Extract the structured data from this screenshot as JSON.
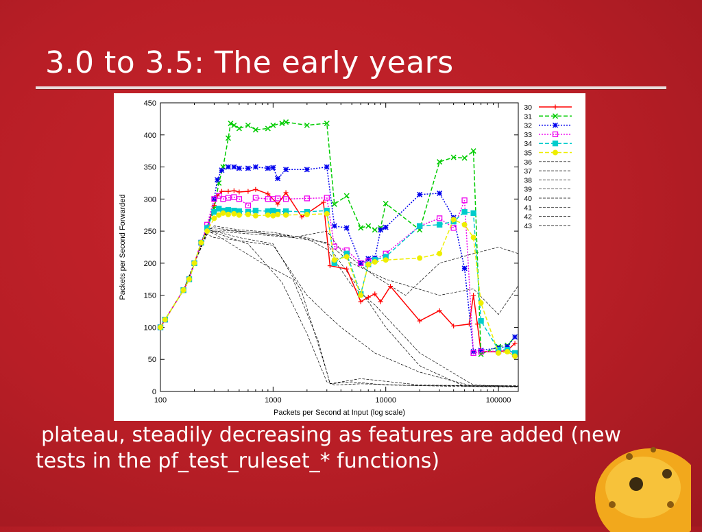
{
  "slide": {
    "title": "3.0 to 3.5: The early years",
    "caption_line1": "plateau, steadily decreasing as features are added (new",
    "caption_line2": "tests in the pf_test_ruleset_* functions)"
  },
  "chart_data": {
    "type": "line",
    "title": "",
    "xlabel": "Packets per Second at Input (log scale)",
    "ylabel": "Packets per Second Forwarded",
    "xscale": "log",
    "xlim": [
      100,
      150000
    ],
    "ylim": [
      0,
      450
    ],
    "x_ticks": [
      100,
      1000,
      10000,
      100000
    ],
    "x_tick_labels": [
      "100",
      "1000",
      "10000",
      "100000"
    ],
    "y_ticks": [
      0,
      50,
      100,
      150,
      200,
      250,
      300,
      350,
      400,
      450
    ],
    "grid": true,
    "legend_position": "right",
    "series": [
      {
        "name": "30",
        "color": "#ff0000",
        "style": "solid",
        "marker": "plus",
        "x": [
          100,
          110,
          160,
          180,
          200,
          230,
          260,
          300,
          320,
          350,
          400,
          450,
          500,
          600,
          700,
          900,
          1100,
          1300,
          1800,
          2800,
          3200,
          4500,
          6000,
          7000,
          8000,
          9000,
          11000,
          20000,
          30000,
          40000,
          55000,
          60000,
          65000,
          70000,
          100000,
          120000,
          140000
        ],
        "y": [
          100,
          112,
          158,
          175,
          200,
          232,
          255,
          290,
          305,
          312,
          312,
          313,
          311,
          312,
          315,
          308,
          292,
          310,
          272,
          295,
          196,
          191,
          140,
          147,
          152,
          140,
          164,
          110,
          126,
          102,
          105,
          150,
          105,
          62,
          62,
          64,
          75
        ]
      },
      {
        "name": "31",
        "color": "#00cc00",
        "style": "dashed",
        "marker": "x",
        "x": [
          100,
          110,
          160,
          180,
          200,
          230,
          260,
          300,
          330,
          360,
          400,
          420,
          450,
          500,
          600,
          700,
          900,
          1000,
          1200,
          1300,
          2000,
          3000,
          3500,
          4500,
          6000,
          7000,
          8000,
          9000,
          10000,
          20000,
          30000,
          40000,
          50000,
          60000,
          70000,
          100000,
          120000,
          140000
        ],
        "y": [
          100,
          112,
          158,
          175,
          200,
          232,
          255,
          285,
          325,
          350,
          395,
          418,
          415,
          410,
          415,
          408,
          410,
          415,
          418,
          420,
          415,
          418,
          292,
          305,
          255,
          258,
          252,
          255,
          293,
          252,
          358,
          365,
          364,
          375,
          58,
          70,
          72,
          85
        ]
      },
      {
        "name": "32",
        "color": "#0000ee",
        "style": "dotted",
        "marker": "star",
        "x": [
          100,
          110,
          160,
          180,
          200,
          230,
          260,
          300,
          320,
          350,
          400,
          450,
          500,
          600,
          700,
          900,
          1000,
          1100,
          1300,
          2000,
          3000,
          3500,
          4500,
          6000,
          7000,
          8000,
          9000,
          10000,
          20000,
          30000,
          40000,
          50000,
          60000,
          70000,
          100000,
          120000,
          140000
        ],
        "y": [
          100,
          112,
          158,
          175,
          200,
          232,
          255,
          300,
          330,
          345,
          350,
          350,
          348,
          348,
          350,
          348,
          349,
          332,
          346,
          346,
          350,
          258,
          255,
          200,
          207,
          208,
          252,
          256,
          307,
          309,
          271,
          192,
          62,
          64,
          68,
          70,
          85
        ]
      },
      {
        "name": "33",
        "color": "#ee00ee",
        "style": "dotted",
        "marker": "square",
        "x": [
          100,
          110,
          160,
          180,
          200,
          230,
          260,
          300,
          330,
          360,
          400,
          450,
          500,
          600,
          700,
          900,
          1000,
          1100,
          1300,
          2000,
          3000,
          3500,
          4500,
          6000,
          7000,
          8000,
          10000,
          20000,
          30000,
          40000,
          50000,
          60000,
          70000,
          100000,
          120000,
          140000
        ],
        "y": [
          100,
          112,
          158,
          175,
          200,
          232,
          260,
          300,
          305,
          300,
          302,
          303,
          300,
          290,
          302,
          300,
          300,
          301,
          300,
          301,
          302,
          226,
          220,
          200,
          203,
          205,
          215,
          258,
          270,
          255,
          298,
          60,
          62,
          63,
          65,
          58
        ]
      },
      {
        "name": "34",
        "color": "#00cccc",
        "style": "dashed",
        "marker": "square",
        "x": [
          100,
          110,
          160,
          180,
          200,
          230,
          260,
          300,
          330,
          360,
          400,
          450,
          500,
          600,
          700,
          900,
          1000,
          1100,
          1300,
          2000,
          3000,
          3500,
          4500,
          6000,
          7000,
          8000,
          10000,
          20000,
          30000,
          40000,
          50000,
          60000,
          70000,
          100000,
          120000,
          140000
        ],
        "y": [
          100,
          112,
          158,
          175,
          200,
          232,
          255,
          280,
          285,
          282,
          283,
          282,
          281,
          280,
          282,
          281,
          282,
          280,
          281,
          280,
          282,
          200,
          215,
          152,
          198,
          205,
          210,
          258,
          260,
          265,
          280,
          278,
          110,
          65,
          65,
          60
        ]
      },
      {
        "name": "35",
        "color": "#eeee00",
        "style": "dashed",
        "marker": "circle",
        "x": [
          100,
          110,
          160,
          180,
          200,
          230,
          260,
          300,
          330,
          360,
          400,
          450,
          500,
          600,
          700,
          900,
          1000,
          1100,
          1300,
          2000,
          3000,
          3500,
          4500,
          6000,
          7000,
          8000,
          10000,
          20000,
          30000,
          40000,
          50000,
          60000,
          70000,
          100000,
          120000,
          140000
        ],
        "y": [
          100,
          112,
          158,
          175,
          200,
          232,
          250,
          270,
          275,
          278,
          276,
          277,
          275,
          276,
          274,
          275,
          274,
          276,
          275,
          276,
          277,
          205,
          210,
          150,
          198,
          202,
          205,
          208,
          215,
          268,
          260,
          240,
          138,
          60,
          62,
          55
        ]
      },
      {
        "name": "36",
        "color": "#000000",
        "style": "thin",
        "marker": "none",
        "x": [
          100,
          160,
          200,
          260,
          300,
          500,
          1000,
          2000,
          3000,
          5000,
          8000,
          20000,
          60000,
          150000
        ],
        "y": [
          100,
          158,
          200,
          250,
          258,
          252,
          248,
          238,
          222,
          165,
          135,
          60,
          10,
          8
        ]
      },
      {
        "name": "37",
        "color": "#000000",
        "style": "thin",
        "marker": "none",
        "x": [
          100,
          160,
          200,
          260,
          300,
          500,
          1000,
          1800,
          3000,
          3200,
          5000,
          10000,
          40000,
          150000
        ],
        "y": [
          100,
          158,
          200,
          248,
          250,
          240,
          230,
          155,
          30,
          12,
          15,
          10,
          8,
          7
        ]
      },
      {
        "name": "38",
        "color": "#000000",
        "style": "thin",
        "marker": "none",
        "x": [
          100,
          160,
          200,
          260,
          300,
          600,
          1200,
          2000,
          3000,
          3500,
          6000,
          20000,
          150000
        ],
        "y": [
          100,
          158,
          200,
          250,
          248,
          230,
          170,
          90,
          15,
          10,
          12,
          9,
          9
        ]
      },
      {
        "name": "39",
        "color": "#000000",
        "style": "thin",
        "marker": "none",
        "x": [
          100,
          160,
          200,
          260,
          300,
          500,
          1000,
          2000,
          3000,
          4000,
          7000,
          10000,
          20000,
          50000,
          150000
        ],
        "y": [
          100,
          158,
          200,
          252,
          255,
          250,
          245,
          240,
          230,
          200,
          140,
          100,
          40,
          8,
          8
        ]
      },
      {
        "name": "40",
        "color": "#000000",
        "style": "thin",
        "marker": "none",
        "x": [
          100,
          160,
          200,
          260,
          300,
          500,
          800,
          1500,
          2500,
          3000,
          3200,
          6000,
          20000,
          150000
        ],
        "y": [
          100,
          158,
          200,
          250,
          246,
          222,
          200,
          175,
          80,
          30,
          12,
          20,
          10,
          8
        ]
      },
      {
        "name": "41",
        "color": "#000000",
        "style": "thin",
        "marker": "none",
        "x": [
          100,
          160,
          200,
          260,
          300,
          700,
          1500,
          3000,
          5000,
          10000,
          30000,
          60000,
          100000,
          150000
        ],
        "y": [
          100,
          158,
          200,
          252,
          250,
          245,
          240,
          232,
          200,
          175,
          150,
          160,
          120,
          165
        ]
      },
      {
        "name": "42",
        "color": "#000000",
        "style": "thin",
        "marker": "none",
        "x": [
          100,
          160,
          200,
          260,
          300,
          700,
          1500,
          3000,
          4000,
          8000,
          15000,
          30000,
          60000,
          100000,
          150000
        ],
        "y": [
          100,
          158,
          200,
          250,
          252,
          248,
          240,
          250,
          220,
          180,
          150,
          200,
          215,
          225,
          215
        ]
      },
      {
        "name": "43",
        "color": "#000000",
        "style": "thin",
        "marker": "none",
        "x": [
          100,
          160,
          200,
          260,
          300,
          500,
          1000,
          2000,
          3000,
          4000,
          8000,
          20000,
          60000,
          150000
        ],
        "y": [
          100,
          158,
          200,
          245,
          240,
          235,
          228,
          150,
          120,
          100,
          60,
          30,
          8,
          8
        ]
      }
    ]
  }
}
